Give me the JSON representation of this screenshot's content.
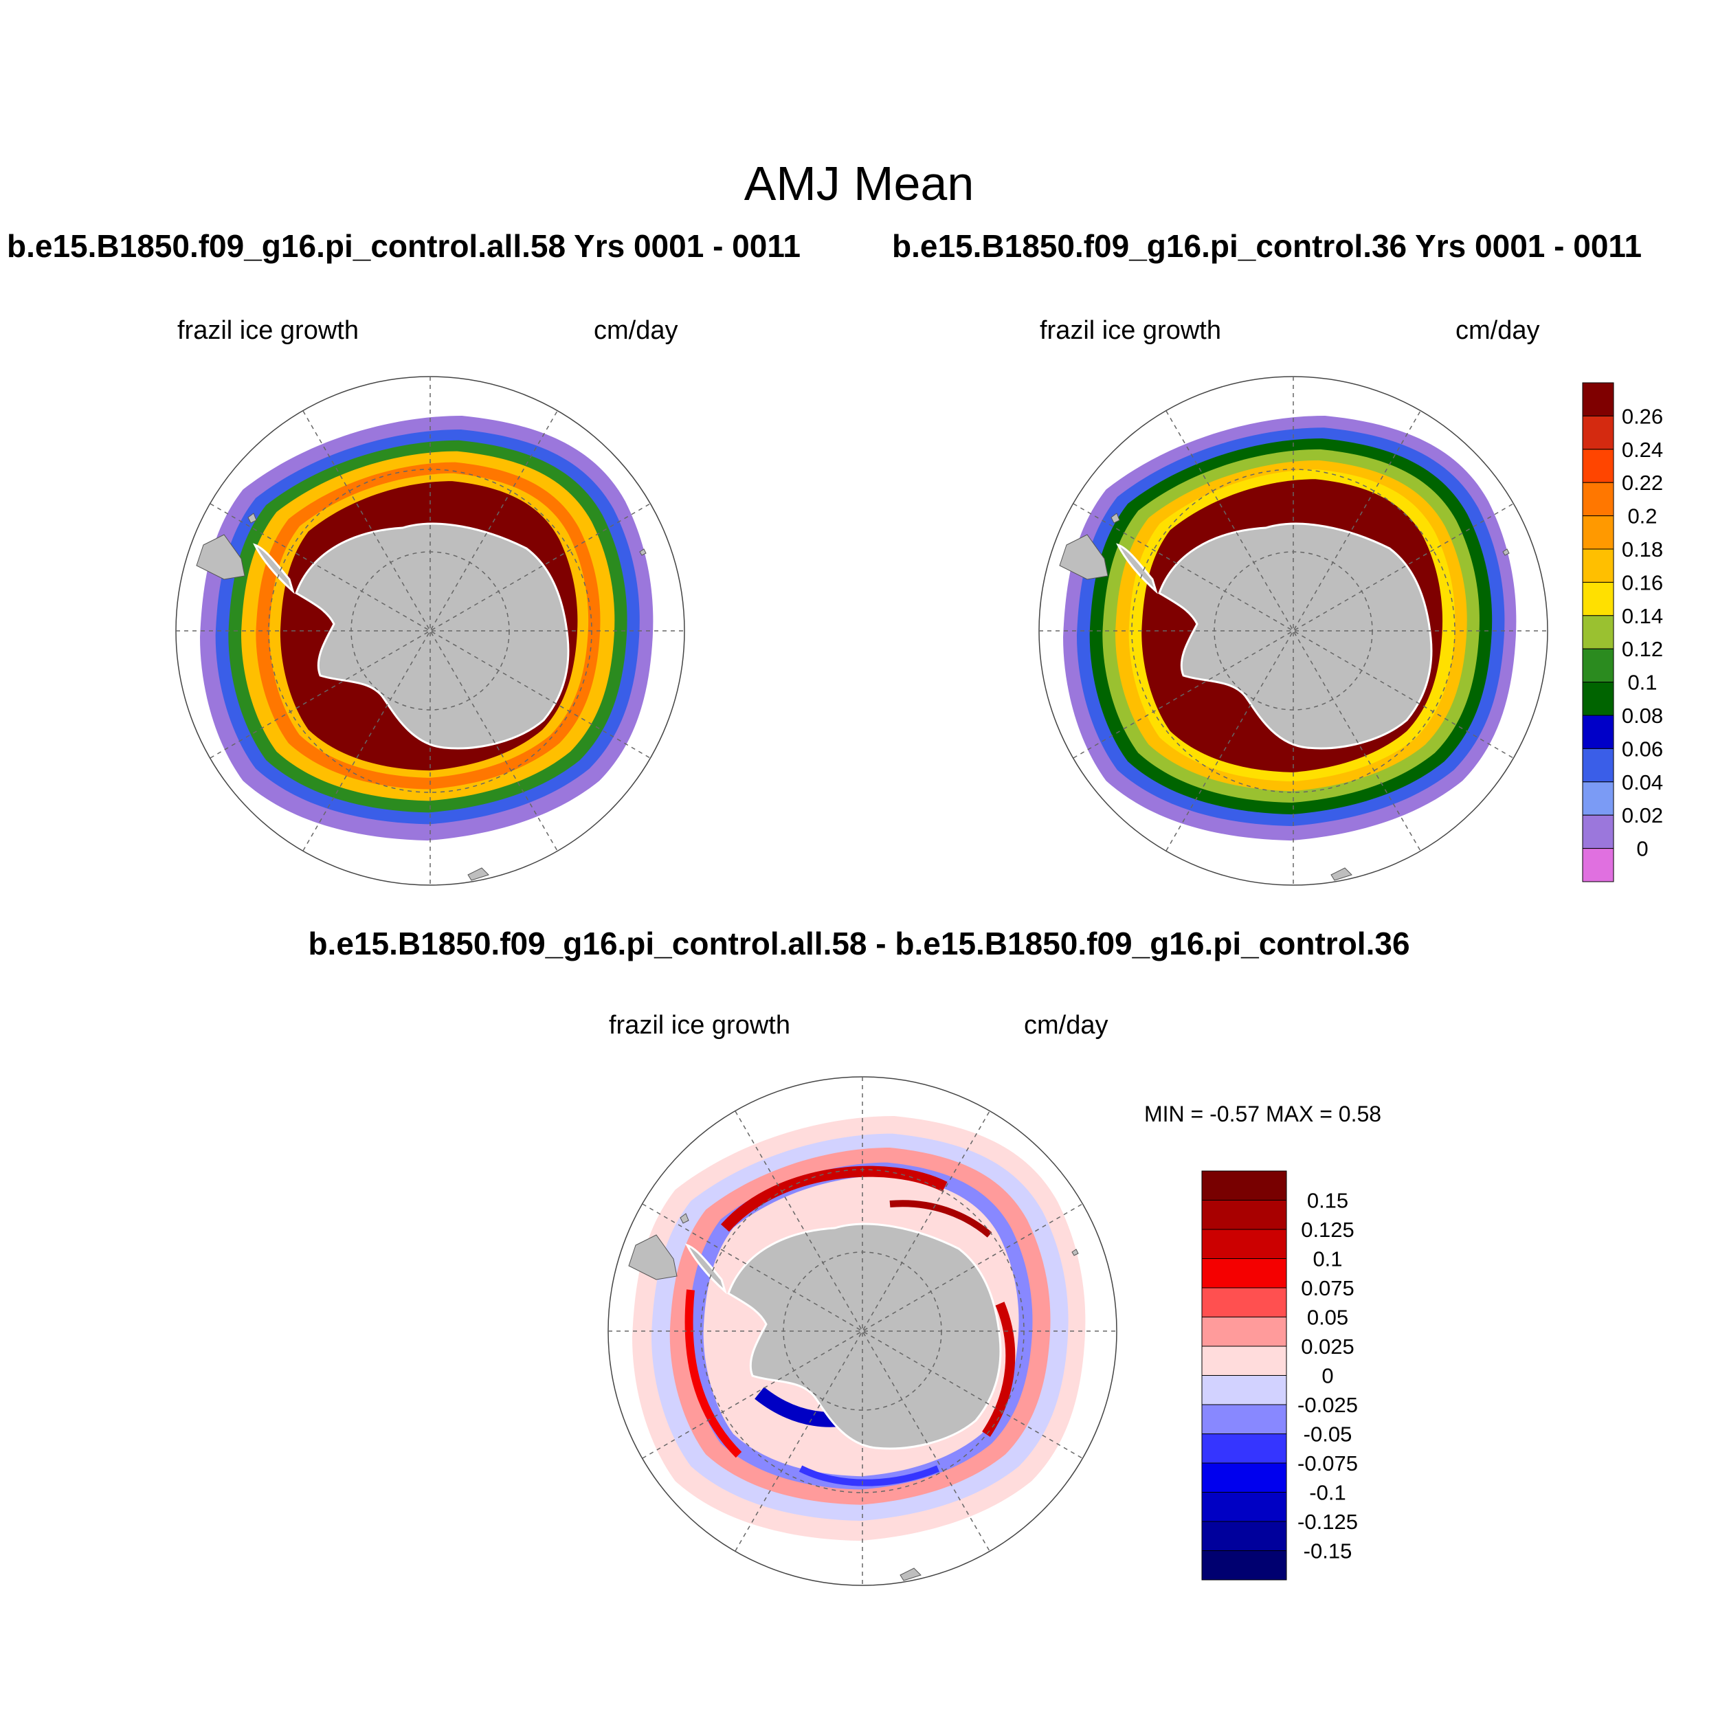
{
  "figure": {
    "title": "AMJ Mean",
    "panels": [
      {
        "title": "b.e15.B1850.f09_g16.pi_control.all.58  Yrs 0001 - 0011",
        "left_label": "frazil ice growth",
        "right_label": "cm/day"
      },
      {
        "title": "b.e15.B1850.f09_g16.pi_control.36  Yrs 0001 - 0011",
        "left_label": "frazil ice growth",
        "right_label": "cm/day"
      },
      {
        "title": "b.e15.B1850.f09_g16.pi_control.all.58 - b.e15.B1850.f09_g16.pi_control.36",
        "left_label": "frazil ice growth",
        "right_label": "cm/day",
        "minmax": "MIN =  -0.57 MAX =   0.58"
      }
    ],
    "colorbar_main": {
      "labels": [
        "0.26",
        "0.24",
        "0.22",
        "0.2",
        "0.18",
        "0.16",
        "0.14",
        "0.12",
        "0.1",
        "0.08",
        "0.06",
        "0.04",
        "0.02",
        "0"
      ],
      "colors": [
        "#7f0000",
        "#d42a10",
        "#ff4500",
        "#ff7700",
        "#ff9900",
        "#ffbf00",
        "#ffe000",
        "#9ac130",
        "#2b8b1f",
        "#006400",
        "#0000c8",
        "#3a5ee8",
        "#7b9bf5",
        "#9b77dc",
        "#e070e0"
      ]
    },
    "colorbar_diff": {
      "labels": [
        "0.15",
        "0.125",
        "0.1",
        "0.075",
        "0.05",
        "0.025",
        "0",
        "-0.025",
        "-0.05",
        "-0.075",
        "-0.1",
        "-0.125",
        "-0.15"
      ],
      "colors": [
        "#780000",
        "#a80000",
        "#cc0000",
        "#f50000",
        "#ff5050",
        "#ff9b9b",
        "#ffdcdc",
        "#d2d2ff",
        "#8888ff",
        "#3535ff",
        "#0000ee",
        "#0000c4",
        "#00009c",
        "#000070"
      ]
    }
  }
}
